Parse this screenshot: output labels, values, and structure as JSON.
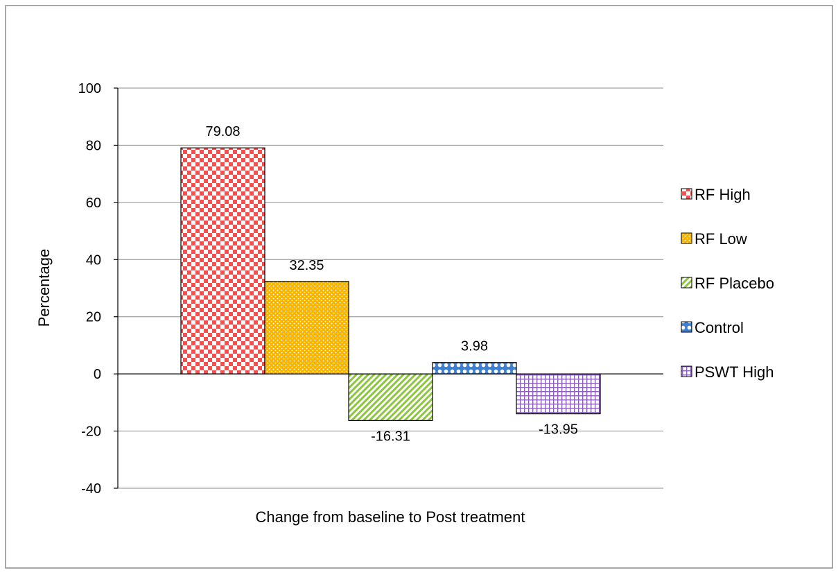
{
  "chart_data": {
    "type": "bar",
    "categories": [
      "Change from baseline to Post treatment"
    ],
    "xlabel": "Change from baseline to Post treatment",
    "ylabel": "Percentage",
    "ylim": [
      -40,
      100
    ],
    "yticks": [
      -40,
      -20,
      0,
      20,
      40,
      60,
      80,
      100
    ],
    "grid": true,
    "legend_position": "right",
    "series": [
      {
        "name": "RF High",
        "value": 79.08,
        "label": "79.08",
        "color": "#f4504f",
        "pattern": "checker"
      },
      {
        "name": "RF Low",
        "value": 32.35,
        "label": "32.35",
        "color": "#f7b500",
        "pattern": "dots"
      },
      {
        "name": "RF Placebo",
        "value": -16.31,
        "label": "-16.31",
        "color": "#8cc63f",
        "pattern": "diagonal"
      },
      {
        "name": "Control",
        "value": 3.98,
        "label": "3.98",
        "color": "#3f7fd2",
        "pattern": "circles"
      },
      {
        "name": "PSWT High",
        "value": -13.95,
        "label": "-13.95",
        "color": "#8a60b8",
        "pattern": "grid"
      }
    ]
  }
}
